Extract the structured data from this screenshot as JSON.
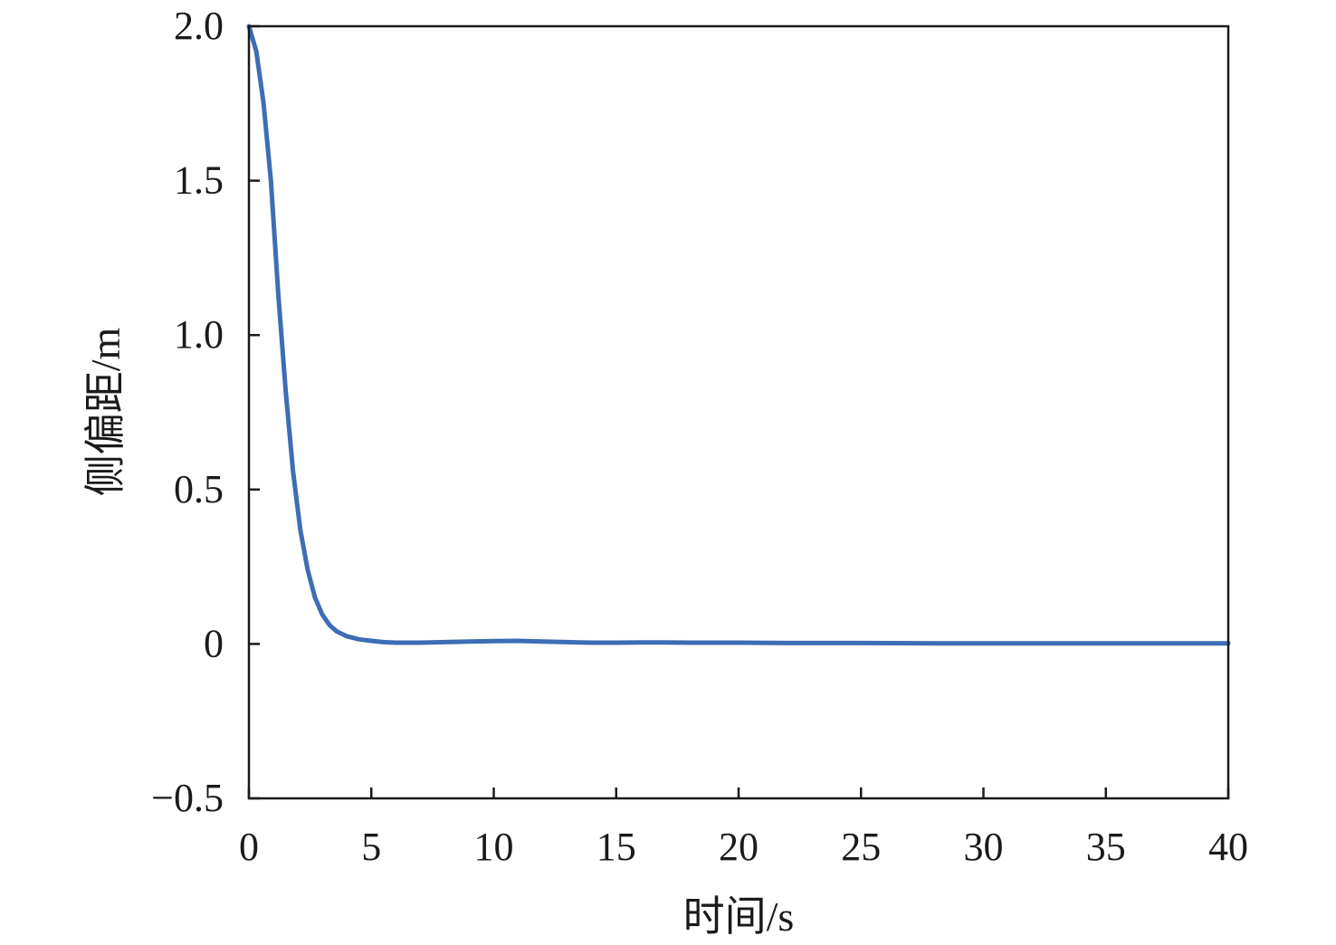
{
  "chart_data": {
    "type": "line",
    "title": "",
    "xlabel": "时间/s",
    "ylabel": "侧偏距/m",
    "xlim": [
      0,
      40
    ],
    "ylim": [
      -0.5,
      2.0
    ],
    "xticks": [
      0,
      5,
      10,
      15,
      20,
      25,
      30,
      35,
      40
    ],
    "xtick_labels": [
      "0",
      "5",
      "10",
      "15",
      "20",
      "25",
      "30",
      "35",
      "40"
    ],
    "yticks": [
      -0.5,
      0,
      0.5,
      1.0,
      1.5,
      2.0
    ],
    "ytick_labels": [
      "−0.5",
      "0",
      "0.5",
      "1.0",
      "1.5",
      "2.0"
    ],
    "grid": false,
    "line_color": "#3d6db5",
    "series": [
      {
        "x": [
          0,
          0.3,
          0.6,
          0.9,
          1.2,
          1.5,
          1.8,
          2.1,
          2.4,
          2.7,
          3.0,
          3.3,
          3.6,
          4.0,
          4.5,
          5.0,
          5.5,
          6.0,
          7.0,
          8.0,
          9.0,
          10.0,
          11.0,
          12.0,
          13.0,
          14.0,
          15.0,
          16.0,
          17.0,
          18.0,
          20.0,
          22.0,
          25.0,
          28.0,
          30.0,
          35.0,
          40.0
        ],
        "y": [
          2.0,
          1.92,
          1.75,
          1.5,
          1.13,
          0.82,
          0.56,
          0.37,
          0.24,
          0.15,
          0.095,
          0.06,
          0.04,
          0.025,
          0.015,
          0.01,
          0.006,
          0.004,
          0.004,
          0.006,
          0.008,
          0.009,
          0.01,
          0.008,
          0.006,
          0.004,
          0.004,
          0.005,
          0.005,
          0.004,
          0.004,
          0.003,
          0.003,
          0.002,
          0.002,
          0.002,
          0.002
        ]
      }
    ]
  }
}
